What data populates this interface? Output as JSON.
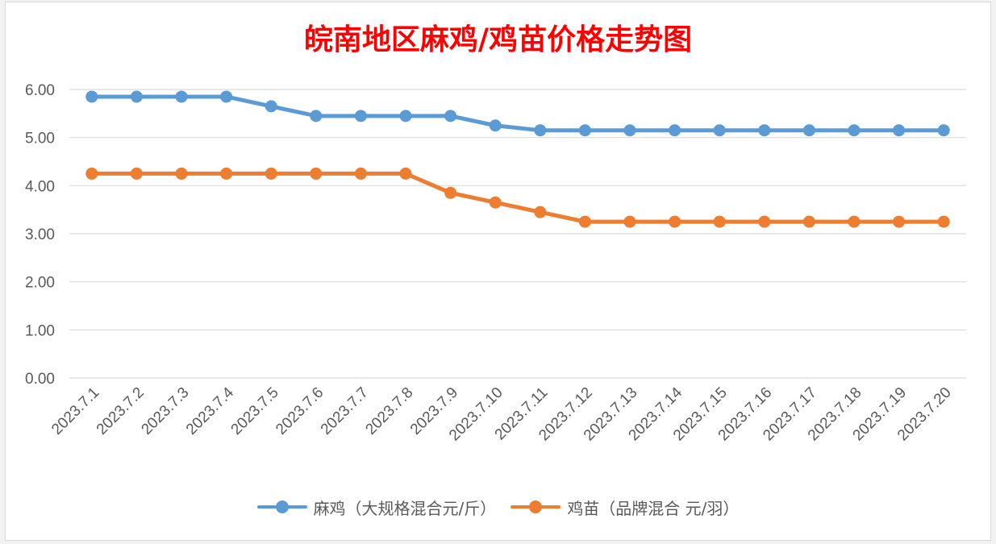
{
  "chart_data": {
    "type": "line",
    "title": "皖南地区麻鸡/鸡苗价格走势图",
    "categories": [
      "2023.7.1",
      "2023.7.2",
      "2023.7.3",
      "2023.7.4",
      "2023.7.5",
      "2023.7.6",
      "2023.7.7",
      "2023.7.8",
      "2023.7.9",
      "2023.7.10",
      "2023.7.11",
      "2023.7.12",
      "2023.7.13",
      "2023.7.14",
      "2023.7.15",
      "2023.7.16",
      "2023.7.17",
      "2023.7.18",
      "2023.7.19",
      "2023.7.20"
    ],
    "series": [
      {
        "name": "麻鸡（大规格混合元/斤）",
        "color": "#5b9bd5",
        "values": [
          5.85,
          5.85,
          5.85,
          5.85,
          5.65,
          5.45,
          5.45,
          5.45,
          5.45,
          5.25,
          5.15,
          5.15,
          5.15,
          5.15,
          5.15,
          5.15,
          5.15,
          5.15,
          5.15,
          5.15
        ]
      },
      {
        "name": "鸡苗（品牌混合 元/羽）",
        "color": "#ed7d31",
        "values": [
          4.25,
          4.25,
          4.25,
          4.25,
          4.25,
          4.25,
          4.25,
          4.25,
          3.85,
          3.65,
          3.45,
          3.25,
          3.25,
          3.25,
          3.25,
          3.25,
          3.25,
          3.25,
          3.25,
          3.25
        ]
      }
    ],
    "y_ticks": [
      "0.00",
      "1.00",
      "2.00",
      "3.00",
      "4.00",
      "5.00",
      "6.00"
    ],
    "ylim": [
      0,
      6
    ],
    "grid": true,
    "legend_position": "bottom"
  }
}
